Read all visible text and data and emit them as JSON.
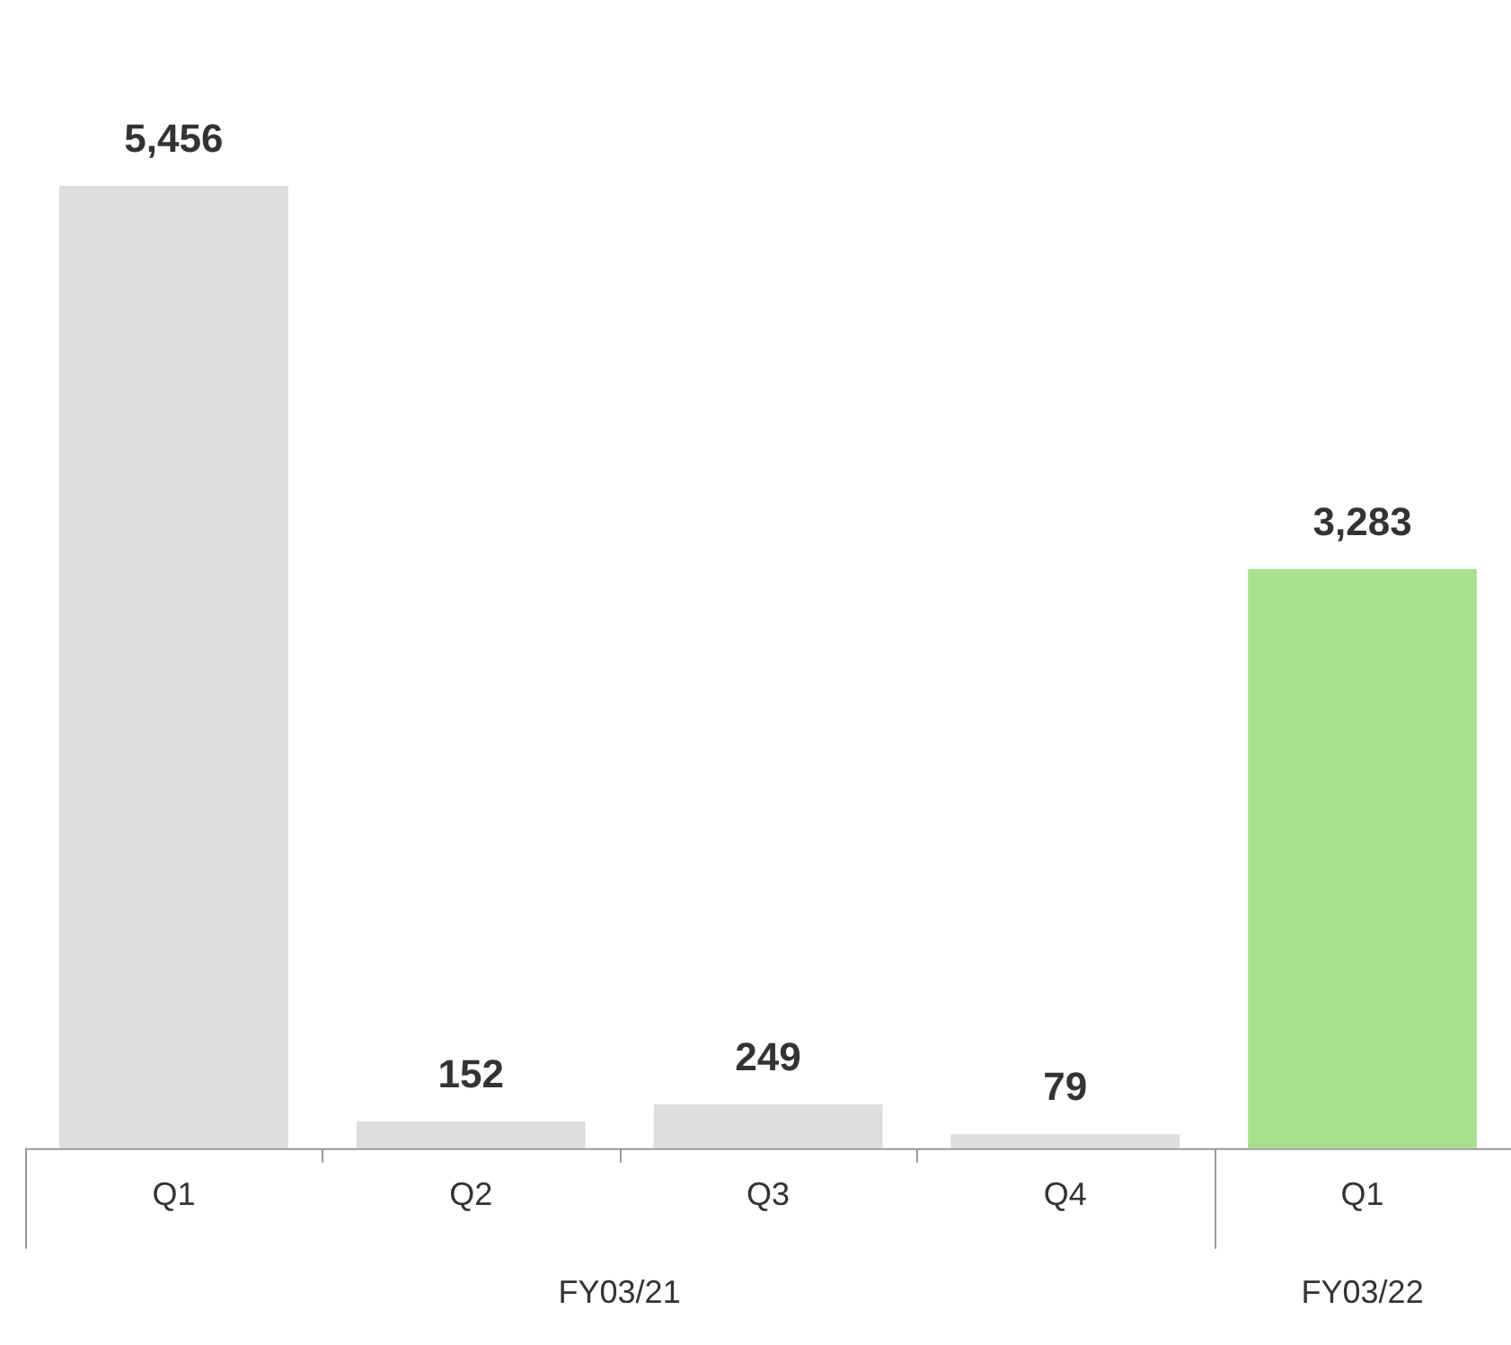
{
  "chart_data": {
    "type": "bar",
    "categories": [
      "Q1",
      "Q2",
      "Q3",
      "Q4",
      "Q1"
    ],
    "values": [
      5456,
      152,
      249,
      79,
      3283
    ],
    "colors": [
      "#dddddd",
      "#dddddd",
      "#dddddd",
      "#dddddd",
      "#a8e08f"
    ],
    "value_labels": [
      "5,456",
      "152",
      "249",
      "79",
      "3,283"
    ],
    "annotations": [
      "FY03/21",
      "FY03/22"
    ],
    "grid": false,
    "legend": false
  }
}
